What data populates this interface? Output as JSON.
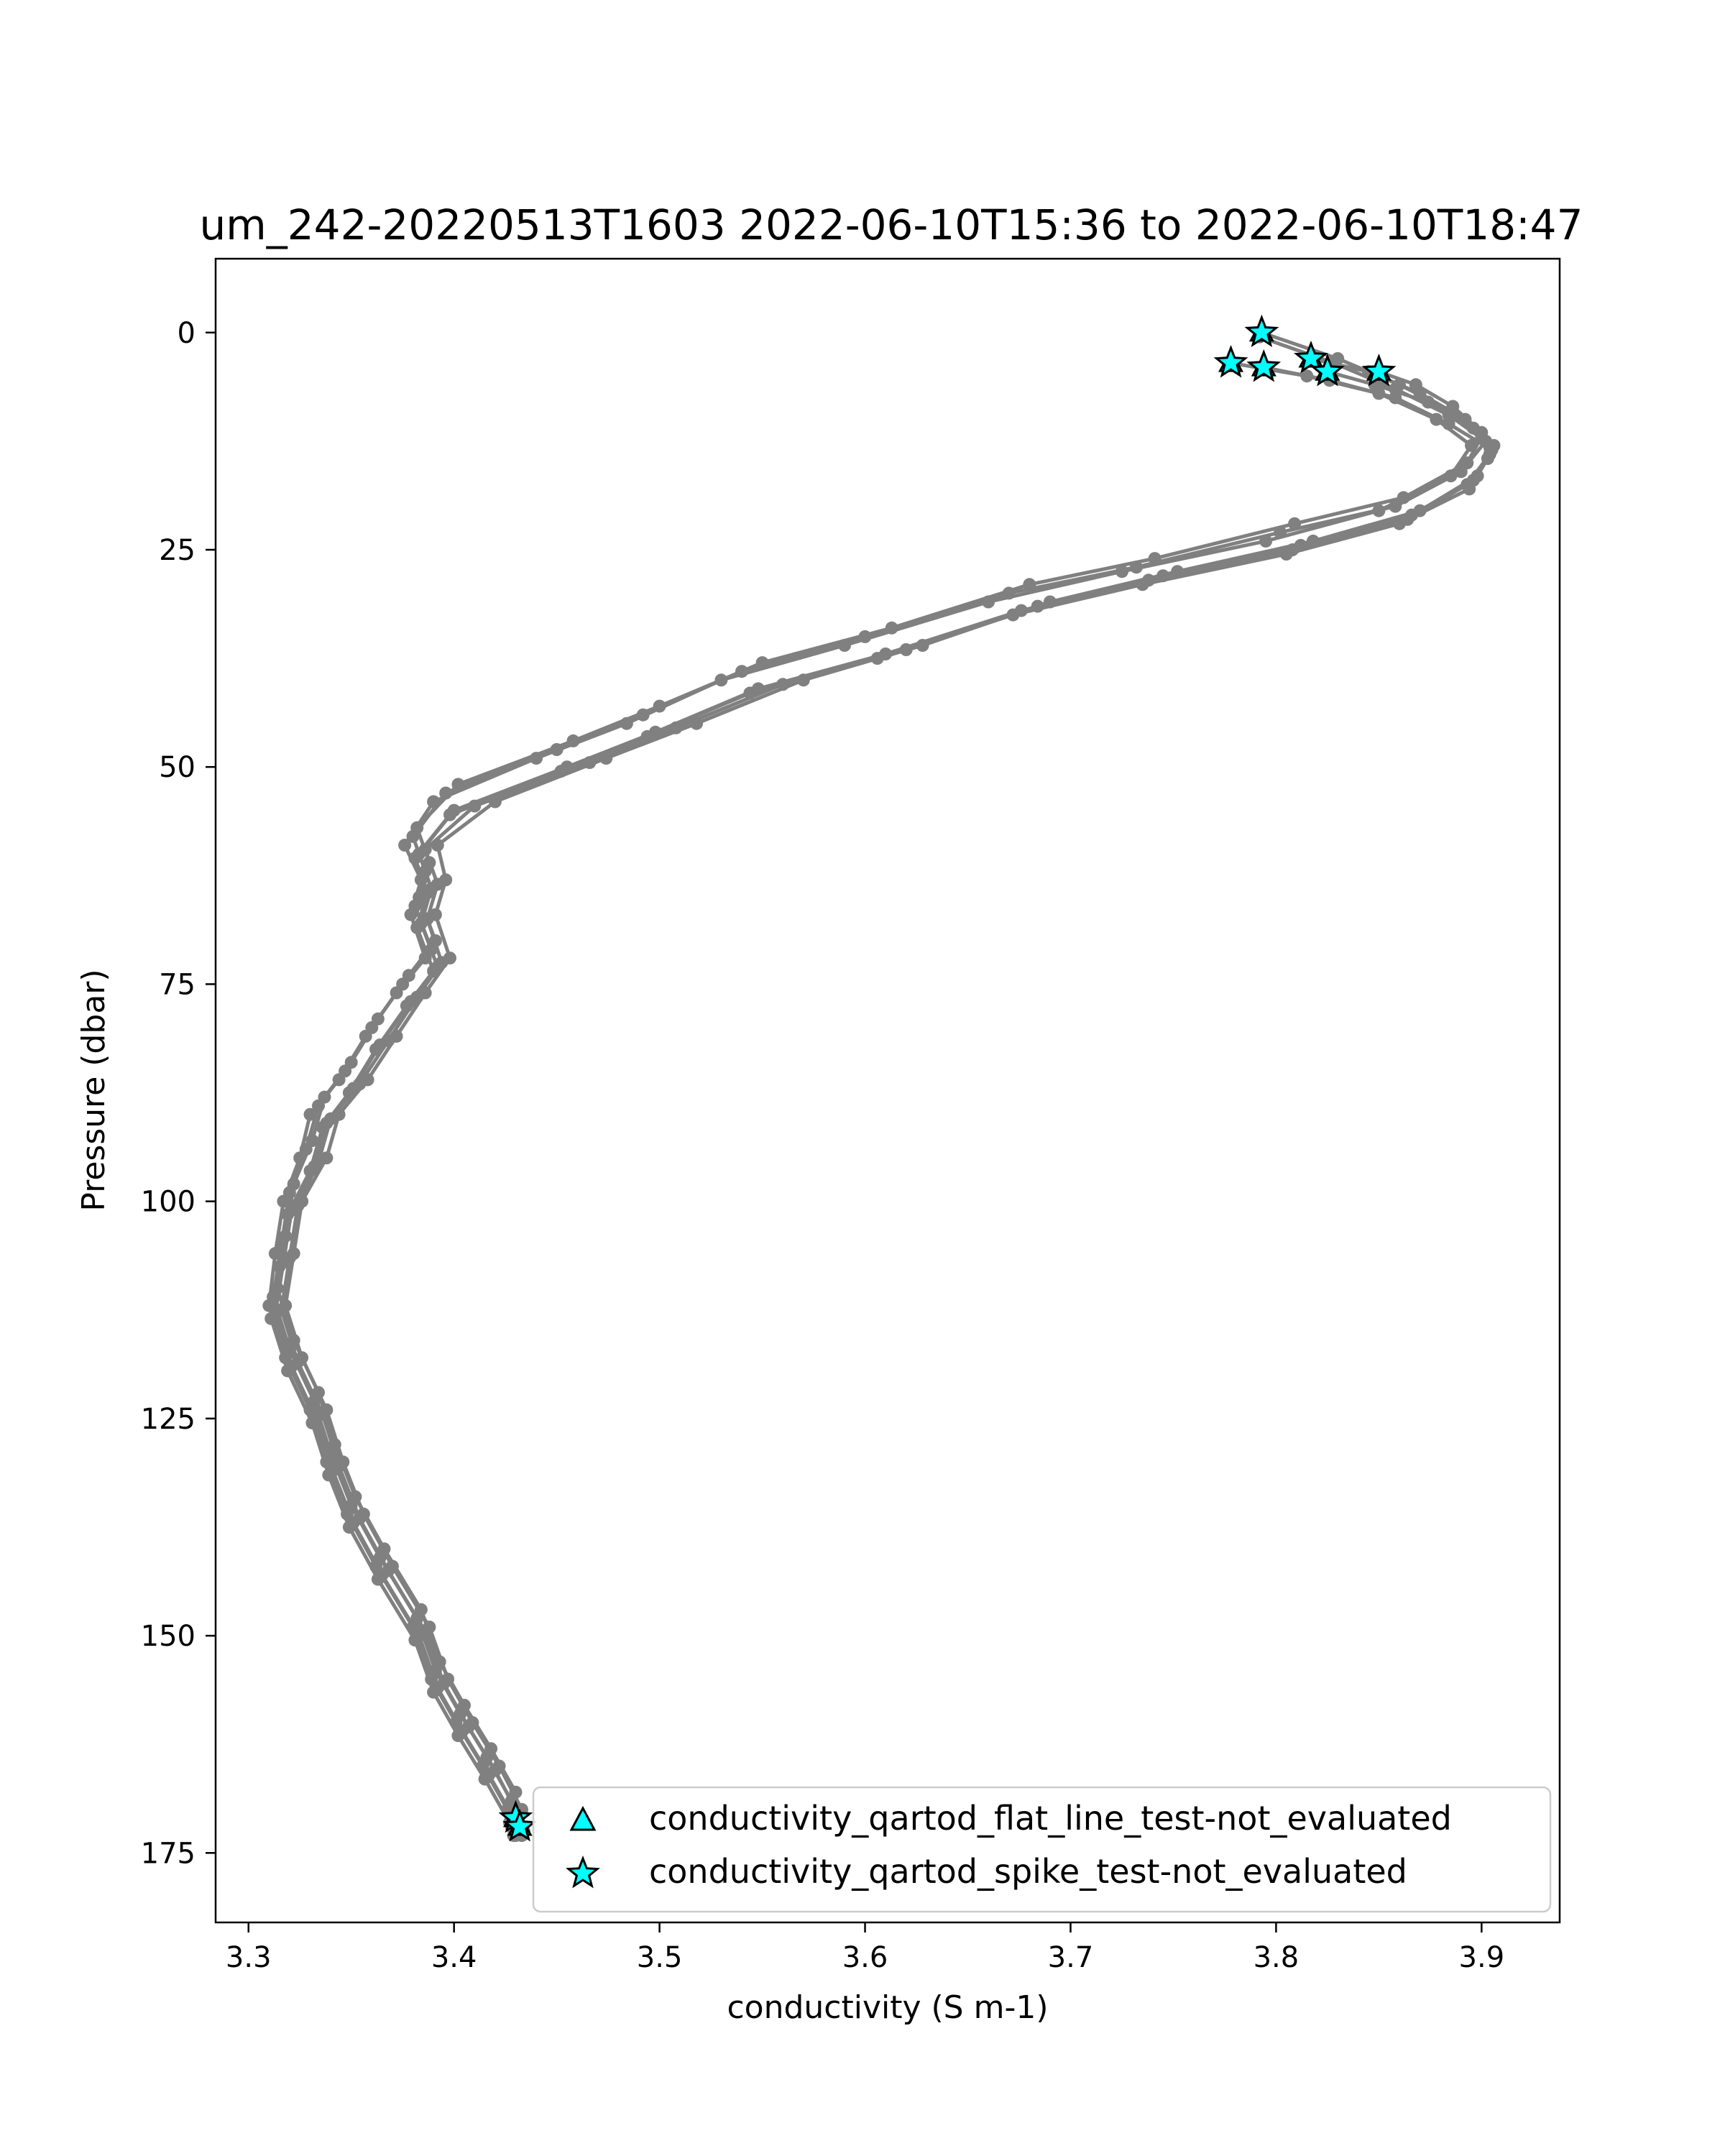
{
  "chart_data": {
    "type": "line",
    "title": "um_242-20220513T1603 2022-06-10T15:36 to 2022-06-10T18:47",
    "xlabel": "conductivity (S m-1)",
    "ylabel": "Pressure (dbar)",
    "xlim": [
      3.284,
      3.938
    ],
    "ylim": [
      183,
      -8.5
    ],
    "y_inverted": true,
    "grid": false,
    "legend_position": "lower-right",
    "xticks": [
      3.3,
      3.4,
      3.5,
      3.6,
      3.7,
      3.8,
      3.9
    ],
    "xtick_labels": [
      "3.3",
      "3.4",
      "3.5",
      "3.6",
      "3.7",
      "3.8",
      "3.9"
    ],
    "yticks": [
      0,
      25,
      50,
      75,
      100,
      125,
      150,
      175
    ],
    "ytick_labels": [
      "0",
      "25",
      "50",
      "75",
      "100",
      "125",
      "150",
      "175"
    ],
    "line_color": "#808080",
    "marker_color": "#00ffff",
    "legend": [
      {
        "label": "conductivity_qartod_flat_line_test-not_evaluated",
        "marker": "triangle"
      },
      {
        "label": "conductivity_qartod_spike_test-not_evaluated",
        "marker": "star"
      }
    ],
    "series": [
      {
        "x": [
          3.793,
          3.83,
          3.86,
          3.885,
          3.9,
          3.893,
          3.862,
          3.809,
          3.741,
          3.68,
          3.613,
          3.55,
          3.5,
          3.458,
          3.402,
          3.382,
          3.388,
          3.383,
          3.391,
          3.378,
          3.363,
          3.35,
          3.337,
          3.331,
          3.322,
          3.318,
          3.314,
          3.322,
          3.334,
          3.342,
          3.352,
          3.366,
          3.384,
          3.393,
          3.405,
          3.418,
          3.43,
          3.432
        ],
        "y": [
          0,
          3,
          6,
          9,
          12,
          15,
          19,
          22,
          26,
          29,
          34,
          38,
          43,
          47,
          52,
          57,
          61,
          65,
          70,
          74,
          79,
          84,
          88,
          93,
          98,
          104,
          110,
          116,
          122,
          128,
          134,
          140,
          147,
          153,
          158,
          163,
          168,
          172
        ]
      },
      {
        "x": [
          3.792,
          3.828,
          3.858,
          3.884,
          3.902,
          3.89,
          3.858,
          3.802,
          3.732,
          3.67,
          3.6,
          3.54,
          3.492,
          3.45,
          3.396,
          3.38,
          3.386,
          3.381,
          3.389,
          3.375,
          3.36,
          3.347,
          3.334,
          3.328,
          3.32,
          3.316,
          3.312,
          3.32,
          3.332,
          3.34,
          3.35,
          3.364,
          3.382,
          3.391,
          3.403,
          3.416,
          3.428,
          3.43
        ],
        "y": [
          0.5,
          3.5,
          6.5,
          9.5,
          12.5,
          16,
          20,
          23,
          27,
          30,
          35,
          39,
          44,
          48,
          53,
          58,
          62,
          66,
          71,
          75,
          80,
          85,
          89,
          94,
          99,
          105,
          111,
          117,
          123,
          129,
          135,
          141,
          148,
          154,
          159,
          164,
          169,
          173
        ]
      },
      {
        "x": [
          3.778,
          3.815,
          3.85,
          3.878,
          3.895,
          3.885,
          3.85,
          3.795,
          3.725,
          3.66,
          3.59,
          3.53,
          3.484,
          3.44,
          3.39,
          3.376,
          3.384,
          3.379,
          3.386,
          3.372,
          3.357,
          3.344,
          3.33,
          3.325,
          3.317,
          3.313,
          3.31,
          3.318,
          3.33,
          3.338,
          3.348,
          3.362,
          3.38,
          3.389,
          3.401,
          3.414,
          3.426,
          3.428
        ],
        "y": [
          3.5,
          5,
          7,
          10,
          13,
          16.5,
          20.5,
          24,
          27.5,
          31,
          36,
          40,
          45,
          49,
          54,
          59,
          63,
          67,
          72,
          76,
          81,
          86,
          90,
          95,
          100,
          106,
          112,
          118,
          124,
          130,
          136,
          142,
          149,
          155,
          160,
          165,
          170,
          172
        ]
      },
      {
        "x": [
          3.794,
          3.826,
          3.858,
          3.884,
          3.905,
          3.896,
          3.866,
          3.812,
          3.745,
          3.684,
          3.62,
          3.56,
          3.508,
          3.466,
          3.41,
          3.386,
          3.392,
          3.387,
          3.394,
          3.382,
          3.368,
          3.354,
          3.34,
          3.334,
          3.324,
          3.32,
          3.316,
          3.324,
          3.336,
          3.344,
          3.354,
          3.368,
          3.386,
          3.395,
          3.407,
          3.42,
          3.431,
          3.433
        ],
        "y": [
          4,
          5.5,
          7.5,
          10.5,
          13.5,
          17,
          21,
          24.5,
          28,
          31.5,
          36.5,
          40.5,
          45.5,
          49.5,
          54.5,
          59.5,
          63.5,
          67.5,
          72.5,
          76.5,
          81.5,
          86.5,
          90.5,
          95.5,
          100.5,
          106.5,
          112.5,
          118.5,
          124.5,
          130.5,
          136.5,
          142.5,
          149.5,
          155.5,
          160.5,
          165.5,
          170.5,
          173
        ]
      },
      {
        "x": [
          3.817,
          3.845,
          3.87,
          3.892,
          3.906,
          3.898,
          3.87,
          3.818,
          3.752,
          3.69,
          3.628,
          3.57,
          3.518,
          3.474,
          3.42,
          3.392,
          3.396,
          3.391,
          3.398,
          3.386,
          3.372,
          3.358,
          3.344,
          3.338,
          3.326,
          3.322,
          3.318,
          3.326,
          3.338,
          3.346,
          3.356,
          3.37,
          3.388,
          3.397,
          3.409,
          3.422,
          3.433,
          3.434
        ],
        "y": [
          3,
          4.5,
          7,
          10,
          13,
          16.5,
          20.5,
          24,
          27.5,
          31,
          36,
          40,
          45,
          49,
          54,
          59,
          63,
          67,
          72,
          76,
          81,
          86,
          90,
          95,
          100,
          106,
          112,
          118,
          124,
          130,
          136,
          142,
          149,
          155,
          160,
          165,
          170,
          172.5
        ]
      },
      {
        "x": [
          3.825,
          3.848,
          3.874,
          3.896,
          3.904,
          3.893,
          3.864,
          3.808,
          3.738,
          3.676,
          3.61,
          3.548,
          3.498,
          3.455,
          3.4,
          3.383,
          3.389,
          3.384,
          3.392,
          3.379,
          3.364,
          3.351,
          3.338,
          3.332,
          3.321,
          3.317,
          3.313,
          3.321,
          3.333,
          3.341,
          3.351,
          3.365,
          3.383,
          3.392,
          3.404,
          3.417,
          3.429,
          3.431
        ],
        "y": [
          4.5,
          6,
          8,
          11,
          14,
          17.5,
          21.5,
          25,
          28.5,
          32,
          37,
          41,
          46,
          50,
          55,
          60,
          64,
          68,
          73,
          77,
          82,
          87,
          91,
          96,
          101,
          107,
          113,
          119,
          125,
          131,
          137,
          143,
          150,
          156,
          161,
          166,
          171,
          172
        ]
      },
      {
        "x": [
          3.85,
          3.868,
          3.886,
          3.9,
          3.903,
          3.894,
          3.86,
          3.805,
          3.735,
          3.672,
          3.606,
          3.544,
          3.494,
          3.452,
          3.398,
          3.381,
          3.387,
          3.382,
          3.39,
          3.377,
          3.362,
          3.349,
          3.336,
          3.33,
          3.319,
          3.315,
          3.311,
          3.319,
          3.331,
          3.339,
          3.349,
          3.363,
          3.381,
          3.39,
          3.402,
          3.415,
          3.427,
          3.429
        ],
        "y": [
          4.5,
          6,
          8.5,
          11.5,
          14.5,
          18,
          22,
          25.5,
          29,
          32.5,
          37.5,
          41.5,
          46.5,
          50.5,
          55.5,
          60.5,
          64.5,
          68.5,
          73.5,
          77.5,
          82.5,
          87.5,
          91.5,
          96.5,
          101.5,
          107.5,
          113.5,
          119.5,
          125.5,
          131.5,
          137.5,
          143.5,
          150.5,
          156.5,
          161.5,
          166.5,
          171.5,
          173
        ]
      }
    ],
    "qartod_flagged": {
      "x": [
        3.793,
        3.778,
        3.794,
        3.817,
        3.825,
        3.85,
        3.43,
        3.432
      ],
      "y": [
        0,
        3.5,
        4,
        3,
        4.5,
        4.5,
        171,
        172
      ]
    }
  }
}
